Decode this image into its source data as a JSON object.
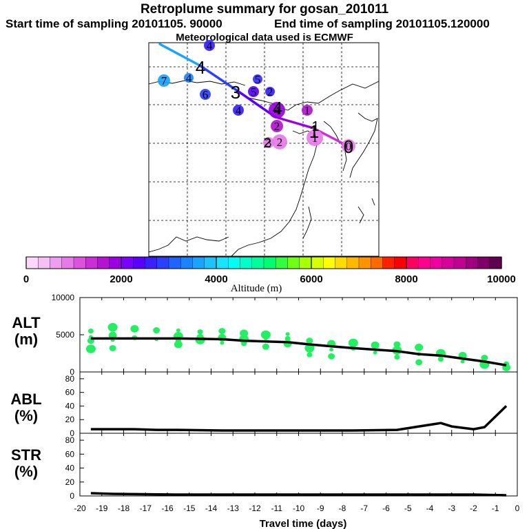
{
  "header": {
    "title": "Retroplume summary for gosan_201011",
    "start": "Start time of sampling 20101105. 90000",
    "end": "End time of sampling 20101105.120000",
    "met": "Meteorological data used is ECMWF"
  },
  "colorbar": {
    "ticks": [
      "0",
      "2000",
      "4000",
      "6000",
      "8000",
      "10000"
    ],
    "label": "Altitude (m)",
    "colors": [
      "#fbd8fb",
      "#f5c0f5",
      "#ee9df0",
      "#e77ae9",
      "#dc52df",
      "#cb2ed6",
      "#b413d3",
      "#9a00e0",
      "#7a00ff",
      "#5a00ff",
      "#3a20ff",
      "#2a40ff",
      "#1e64ff",
      "#1a84ff",
      "#19a4ff",
      "#19c4ff",
      "#19e4ff",
      "#00fff0",
      "#00ffc8",
      "#00ff9a",
      "#00ff70",
      "#30ff40",
      "#70ff10",
      "#a8ff00",
      "#d8ff00",
      "#ffff00",
      "#ffdc00",
      "#ffb800",
      "#ff9400",
      "#ff6a00",
      "#ff2000",
      "#ff0000",
      "#ff0060",
      "#ff0090",
      "#f000a0",
      "#d8009a",
      "#c00090",
      "#a00080",
      "#80006a",
      "#600050"
    ]
  },
  "map": {
    "markers": [
      {
        "n": "4",
        "alt": 2300,
        "color": "#3a20ff"
      },
      {
        "n": "7",
        "alt": 3500,
        "color": "#19a4ff"
      },
      {
        "n": "4",
        "alt": 3300,
        "color": "#1e84ff"
      },
      {
        "n": "6",
        "alt": 3000,
        "color": "#2a40ff"
      },
      {
        "n": "5",
        "alt": 2600,
        "color": "#3a30ff"
      },
      {
        "n": "4",
        "alt": 2300,
        "color": "#3a20ff"
      },
      {
        "n": "2",
        "alt": 2400,
        "color": "#3a20ff"
      },
      {
        "n": "5",
        "alt": 2200,
        "color": "#5a00ff"
      },
      {
        "n": "4",
        "alt": 1700,
        "color": "#9a00e0"
      },
      {
        "n": "1",
        "alt": 1500,
        "color": "#b413d3"
      },
      {
        "n": "2",
        "alt": 1500,
        "color": "#b413d3"
      },
      {
        "n": "3",
        "alt": 900,
        "color": "#e77ae9"
      },
      {
        "n": "2",
        "alt": 800,
        "color": "#e77ae9"
      },
      {
        "n": "1",
        "alt": 800,
        "color": "#e77ae9"
      },
      {
        "n": "0",
        "alt": 800,
        "color": "#e77ae9"
      }
    ],
    "path_labels": [
      "4",
      "3",
      "2",
      "1",
      "0",
      "1",
      "2"
    ]
  },
  "chart_data": [
    {
      "type": "line",
      "title": "ALT",
      "ylabel": "ALT (m)",
      "ylim": [
        0,
        10000
      ],
      "yticks": [
        "10000",
        "5000",
        "0"
      ],
      "xlim": [
        -20,
        0
      ],
      "x": [
        -19.5,
        -18.5,
        -17.5,
        -16.5,
        -15.5,
        -14.5,
        -13.5,
        -12.5,
        -11.5,
        -10.5,
        -9.5,
        -8.5,
        -7.5,
        -6.5,
        -5.5,
        -4.5,
        -3.5,
        -2.5,
        -1.5,
        -0.5
      ],
      "series": [
        {
          "name": "mean altitude",
          "values": [
            4500,
            4500,
            4500,
            4500,
            4500,
            4450,
            4400,
            4200,
            4100,
            4000,
            3700,
            3450,
            3200,
            3000,
            2800,
            2400,
            2200,
            1800,
            1400,
            900
          ]
        }
      ],
      "scatter": {
        "name": "particle clusters",
        "points": [
          [
            -19.5,
            4700
          ],
          [
            -19.5,
            4200
          ],
          [
            -19.5,
            3100
          ],
          [
            -19.5,
            5500
          ],
          [
            -18.5,
            4900
          ],
          [
            -18.5,
            4300
          ],
          [
            -18.5,
            3200
          ],
          [
            -18.5,
            6000
          ],
          [
            -17.5,
            4600
          ],
          [
            -17.5,
            5800
          ],
          [
            -16.5,
            4400
          ],
          [
            -16.5,
            5600
          ],
          [
            -15.5,
            4800
          ],
          [
            -15.5,
            4200
          ],
          [
            -15.5,
            3700
          ],
          [
            -15.5,
            5600
          ],
          [
            -14.5,
            4700
          ],
          [
            -14.5,
            4300
          ],
          [
            -14.5,
            5400
          ],
          [
            -13.5,
            4600
          ],
          [
            -13.5,
            3900
          ],
          [
            -13.5,
            5500
          ],
          [
            -12.5,
            4400
          ],
          [
            -12.5,
            3800
          ],
          [
            -12.5,
            5200
          ],
          [
            -11.5,
            4500
          ],
          [
            -11.5,
            3400
          ],
          [
            -11.5,
            5000
          ],
          [
            -10.5,
            4500
          ],
          [
            -10.5,
            3800
          ],
          [
            -10.5,
            5100
          ],
          [
            -9.5,
            4200
          ],
          [
            -9.5,
            3200
          ],
          [
            -9.5,
            2300
          ],
          [
            -8.5,
            3800
          ],
          [
            -8.5,
            3000
          ],
          [
            -8.5,
            2100
          ],
          [
            -7.5,
            3900
          ],
          [
            -7.5,
            3200
          ],
          [
            -6.5,
            3600
          ],
          [
            -6.5,
            2600
          ],
          [
            -5.5,
            3700
          ],
          [
            -5.5,
            2900
          ],
          [
            -5.5,
            2000
          ],
          [
            -4.5,
            3300
          ],
          [
            -4.5,
            2400
          ],
          [
            -4.5,
            1300
          ],
          [
            -3.5,
            2500
          ],
          [
            -3.5,
            1700
          ],
          [
            -2.5,
            2200
          ],
          [
            -2.5,
            1400
          ],
          [
            -1.5,
            1900
          ],
          [
            -1.5,
            1000
          ],
          [
            -0.5,
            1100
          ],
          [
            -0.5,
            600
          ]
        ]
      }
    },
    {
      "type": "line",
      "title": "ABL",
      "ylabel": "ABL (%)",
      "ylim": [
        0,
        90
      ],
      "yticks": [
        "80",
        "60",
        "40",
        "20",
        "0"
      ],
      "xlim": [
        -20,
        0
      ],
      "x": [
        -19.5,
        -17.5,
        -16.5,
        -15.5,
        -13.5,
        -11.5,
        -9.5,
        -7.5,
        -5.5,
        -4.5,
        -3.5,
        -3.0,
        -2.0,
        -1.5,
        -0.5
      ],
      "series": [
        {
          "name": "ABL fraction",
          "values": [
            6,
            6,
            5,
            5,
            4,
            4,
            4,
            4,
            5,
            10,
            15,
            10,
            6,
            9,
            40
          ]
        }
      ]
    },
    {
      "type": "line",
      "title": "STR",
      "ylabel": "STR (%)",
      "ylim": [
        0,
        90
      ],
      "yticks": [
        "80",
        "60",
        "40",
        "20",
        "0"
      ],
      "xlim": [
        -20,
        0
      ],
      "xlabel": "Travel time (days)",
      "xticks": [
        "-20",
        "-19",
        "-18",
        "-17",
        "-16",
        "-15",
        "-14",
        "-13",
        "-12",
        "-11",
        "-10",
        "-9",
        "-8",
        "-7",
        "-6",
        "-5",
        "-4",
        "-3",
        "-2",
        "-1",
        "0"
      ],
      "x": [
        -19.5,
        -18.5,
        -15.5,
        -12.5,
        -9.5,
        -6.5,
        -3.5,
        -2.0,
        -0.5
      ],
      "series": [
        {
          "name": "stratospheric fraction",
          "values": [
            4,
            3,
            2,
            2,
            2,
            2,
            2,
            2,
            1
          ]
        }
      ]
    }
  ],
  "panels": {
    "alt": {
      "label1": "ALT",
      "label2": "(m)"
    },
    "abl": {
      "label1": "ABL",
      "label2": "(%)"
    },
    "str": {
      "label1": "STR",
      "label2": "(%)"
    }
  }
}
